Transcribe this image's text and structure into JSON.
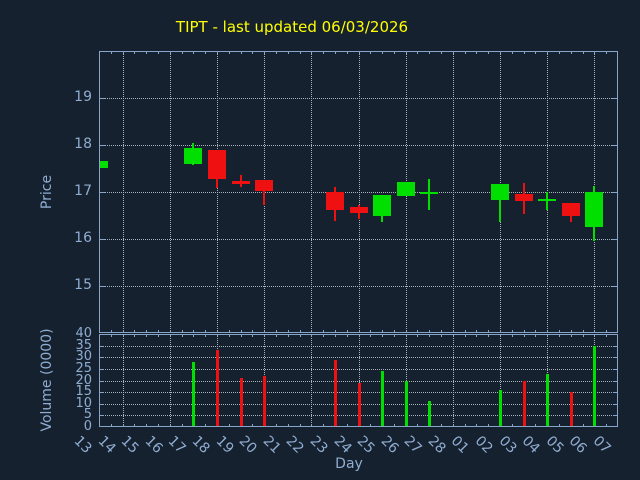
{
  "chart": {
    "title": "TIPT - last updated 06/03/2026",
    "price_axis_label": "Price",
    "volume_axis_label": "Volume (0000)",
    "x_axis_label": "Day",
    "colors": {
      "background": "#16212f",
      "frame": "#87a5c8",
      "tick_text": "#8fadd1",
      "title_text": "#ffff00",
      "grid": "#aab3bb",
      "up": "#00df00",
      "down": "#ef1111"
    }
  },
  "chart_data": {
    "type": "candlestick",
    "title": "TIPT - last updated 06/03/2026",
    "xlabel": "Day",
    "ylabel_price": "Price",
    "ylabel_volume": "Volume (0000)",
    "legend": "none",
    "grid": "dotted, vertical every 2nd day, horizontal at each labeled tick",
    "x_categories": [
      "13",
      "14",
      "15",
      "16",
      "17",
      "18",
      "19",
      "20",
      "21",
      "22",
      "23",
      "24",
      "25",
      "26",
      "27",
      "28",
      "01",
      "02",
      "03",
      "04",
      "05",
      "06",
      "07"
    ],
    "grid_x_indices": [
      1,
      3,
      5,
      7,
      9,
      11,
      13,
      15,
      17,
      19,
      21
    ],
    "price_ticks": [
      15,
      16,
      17,
      18,
      19
    ],
    "price_ylim": [
      14.0,
      20.0
    ],
    "volume_ticks": [
      0,
      5,
      10,
      15,
      20,
      25,
      30,
      35,
      40
    ],
    "volume_ylim": [
      0,
      40
    ],
    "candles": [
      {
        "day": "13",
        "open": 17.52,
        "high": 17.66,
        "low": 17.5,
        "close": 17.66,
        "direction": "up",
        "volume": null
      },
      {
        "day": "17",
        "open": 17.6,
        "high": 18.05,
        "low": 17.58,
        "close": 17.93,
        "direction": "up",
        "volume": 28
      },
      {
        "day": "18",
        "open": 17.9,
        "high": 17.9,
        "low": 17.08,
        "close": 17.27,
        "direction": "down",
        "volume": 33
      },
      {
        "day": "19",
        "open": 17.23,
        "high": 17.36,
        "low": 17.11,
        "close": 17.17,
        "direction": "down",
        "volume": 21
      },
      {
        "day": "20",
        "open": 17.25,
        "high": 17.25,
        "low": 16.73,
        "close": 17.02,
        "direction": "down",
        "volume": 22
      },
      {
        "day": "23",
        "open": 17.0,
        "high": 17.1,
        "low": 16.39,
        "close": 16.62,
        "direction": "down",
        "volume": 29
      },
      {
        "day": "24",
        "open": 16.68,
        "high": 16.73,
        "low": 16.43,
        "close": 16.56,
        "direction": "down",
        "volume": 19
      },
      {
        "day": "25",
        "open": 16.49,
        "high": 16.93,
        "low": 16.37,
        "close": 16.93,
        "direction": "up",
        "volume": 24
      },
      {
        "day": "26",
        "open": 16.92,
        "high": 17.21,
        "low": 16.92,
        "close": 17.21,
        "direction": "up",
        "volume": 20
      },
      {
        "day": "27",
        "open": 17.0,
        "high": 17.27,
        "low": 16.62,
        "close": 17.0,
        "direction": "up",
        "volume": 11
      },
      {
        "day": "02",
        "open": 16.83,
        "high": 17.17,
        "low": 16.37,
        "close": 17.17,
        "direction": "up",
        "volume": 16
      },
      {
        "day": "03",
        "open": 16.96,
        "high": 17.2,
        "low": 16.54,
        "close": 16.81,
        "direction": "down",
        "volume": 20
      },
      {
        "day": "04",
        "open": 16.85,
        "high": 17.0,
        "low": 16.62,
        "close": 16.85,
        "direction": "up",
        "volume": 23
      },
      {
        "day": "05",
        "open": 16.77,
        "high": 16.77,
        "low": 16.37,
        "close": 16.49,
        "direction": "down",
        "volume": 15
      },
      {
        "day": "06",
        "open": 16.26,
        "high": 17.12,
        "low": 15.95,
        "close": 17.0,
        "direction": "up",
        "volume": 35
      }
    ]
  }
}
